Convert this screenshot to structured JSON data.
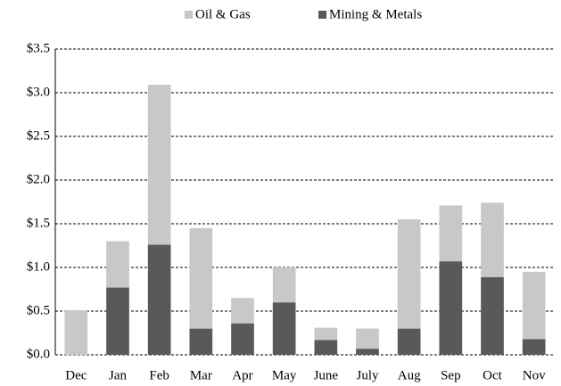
{
  "chart_data": {
    "type": "stacked_bar",
    "categories": [
      "Dec",
      "Jan",
      "Feb",
      "Mar",
      "Apr",
      "May",
      "June",
      "July",
      "Aug",
      "Sep",
      "Oct",
      "Nov"
    ],
    "series": [
      {
        "name": "Oil & Gas",
        "color": "#c8c8c8",
        "values": [
          0.51,
          0.53,
          1.83,
          1.15,
          0.29,
          0.4,
          0.14,
          0.23,
          1.25,
          0.64,
          0.85,
          0.77
        ]
      },
      {
        "name": "Mining & Metals",
        "color": "#595959",
        "values": [
          0,
          0.77,
          1.26,
          0.3,
          0.36,
          0.6,
          0.17,
          0.07,
          0.3,
          1.07,
          0.89,
          0.18
        ]
      }
    ],
    "ylim": [
      0,
      3.5
    ],
    "yticks": [
      {
        "value": 0,
        "label": "$0.0"
      },
      {
        "value": 0.5,
        "label": "$0.5"
      },
      {
        "value": 1,
        "label": "$1.0"
      },
      {
        "value": 1.5,
        "label": "$1.5"
      },
      {
        "value": 2,
        "label": "$2.0"
      },
      {
        "value": 2.5,
        "label": "$2.5"
      },
      {
        "value": 3,
        "label": "$3.0"
      },
      {
        "value": 3.5,
        "label": "$3.5"
      }
    ],
    "grid": true,
    "legend": "top"
  }
}
